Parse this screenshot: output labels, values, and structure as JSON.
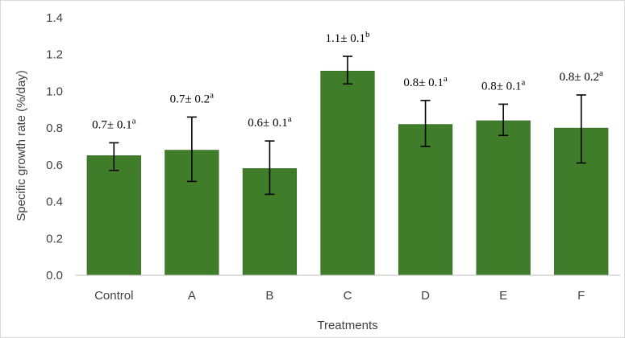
{
  "chart_data": {
    "type": "bar",
    "xlabel": "Treatments",
    "ylabel": "Specific growth rate (%/day)",
    "ylim": [
      0,
      1.4
    ],
    "yticks": [
      "0.0",
      "0.2",
      "0.4",
      "0.6",
      "0.8",
      "1.0",
      "1.2",
      "1.4"
    ],
    "grid": false,
    "legend": "none",
    "bar_color": "#3f7d2a",
    "categories": [
      "Control",
      "A",
      "B",
      "C",
      "D",
      "E",
      "F"
    ],
    "values": [
      0.65,
      0.68,
      0.58,
      1.11,
      0.82,
      0.84,
      0.8
    ],
    "error_low": [
      0.57,
      0.51,
      0.44,
      1.04,
      0.7,
      0.76,
      0.61
    ],
    "error_high": [
      0.72,
      0.86,
      0.73,
      1.19,
      0.95,
      0.93,
      0.98
    ],
    "data_labels": [
      {
        "text": "0.7± 0.1",
        "sup": "a"
      },
      {
        "text": "0.7± 0.2",
        "sup": "a"
      },
      {
        "text": "0.6± 0.1",
        "sup": "a"
      },
      {
        "text": "1.1± 0.1",
        "sup": "b"
      },
      {
        "text": "0.8± 0.1",
        "sup": "a"
      },
      {
        "text": "0.8± 0.1",
        "sup": "a"
      },
      {
        "text": "0.8± 0.2",
        "sup": "a"
      }
    ]
  }
}
